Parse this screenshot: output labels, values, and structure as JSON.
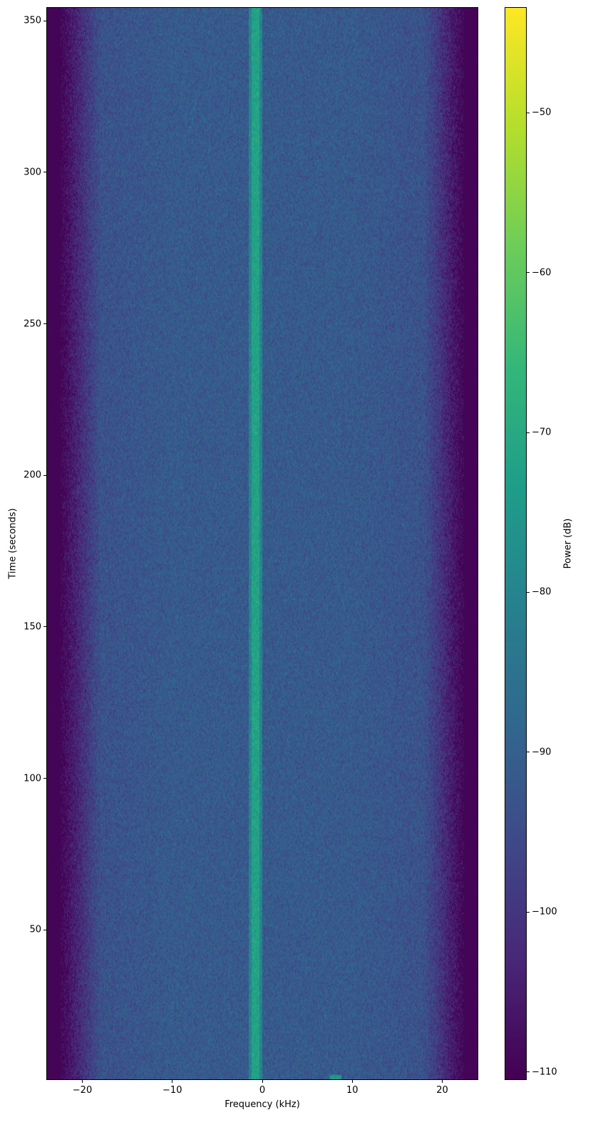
{
  "chart_data": {
    "type": "heatmap",
    "xlabel": "Frequency (kHz)",
    "ylabel": "Time (seconds)",
    "colorbar_label": "Power (dB)",
    "colormap": "viridis",
    "xlim": [
      -24,
      24
    ],
    "ylim": [
      0.5,
      354.5
    ],
    "clim": [
      -110.5,
      -43.4
    ],
    "xticks": [
      -20,
      -10,
      0,
      10,
      20
    ],
    "xtick_labels": [
      "−20",
      "−10",
      "0",
      "10",
      "20"
    ],
    "yticks": [
      50,
      100,
      150,
      200,
      250,
      300,
      350
    ],
    "ytick_labels": [
      "50",
      "100",
      "150",
      "200",
      "250",
      "300",
      "350"
    ],
    "cticks": [
      -110,
      -100,
      -90,
      -80,
      -70,
      -60,
      -50
    ],
    "ctick_labels": [
      "−110",
      "−100",
      "−90",
      "−80",
      "−70",
      "−60",
      "−50"
    ],
    "grid": false,
    "features": {
      "noise_floor_db": -90,
      "band_edge_rolloff_khz": 20,
      "out_of_band_db": -110,
      "carrier": {
        "freq_range_khz": [
          -1.2,
          -0.3
        ],
        "power_db": -72
      },
      "burst": {
        "freq_range_khz": [
          7.5,
          8.8
        ],
        "time_range_s": [
          0.5,
          2
        ],
        "power_db": -75
      }
    }
  }
}
